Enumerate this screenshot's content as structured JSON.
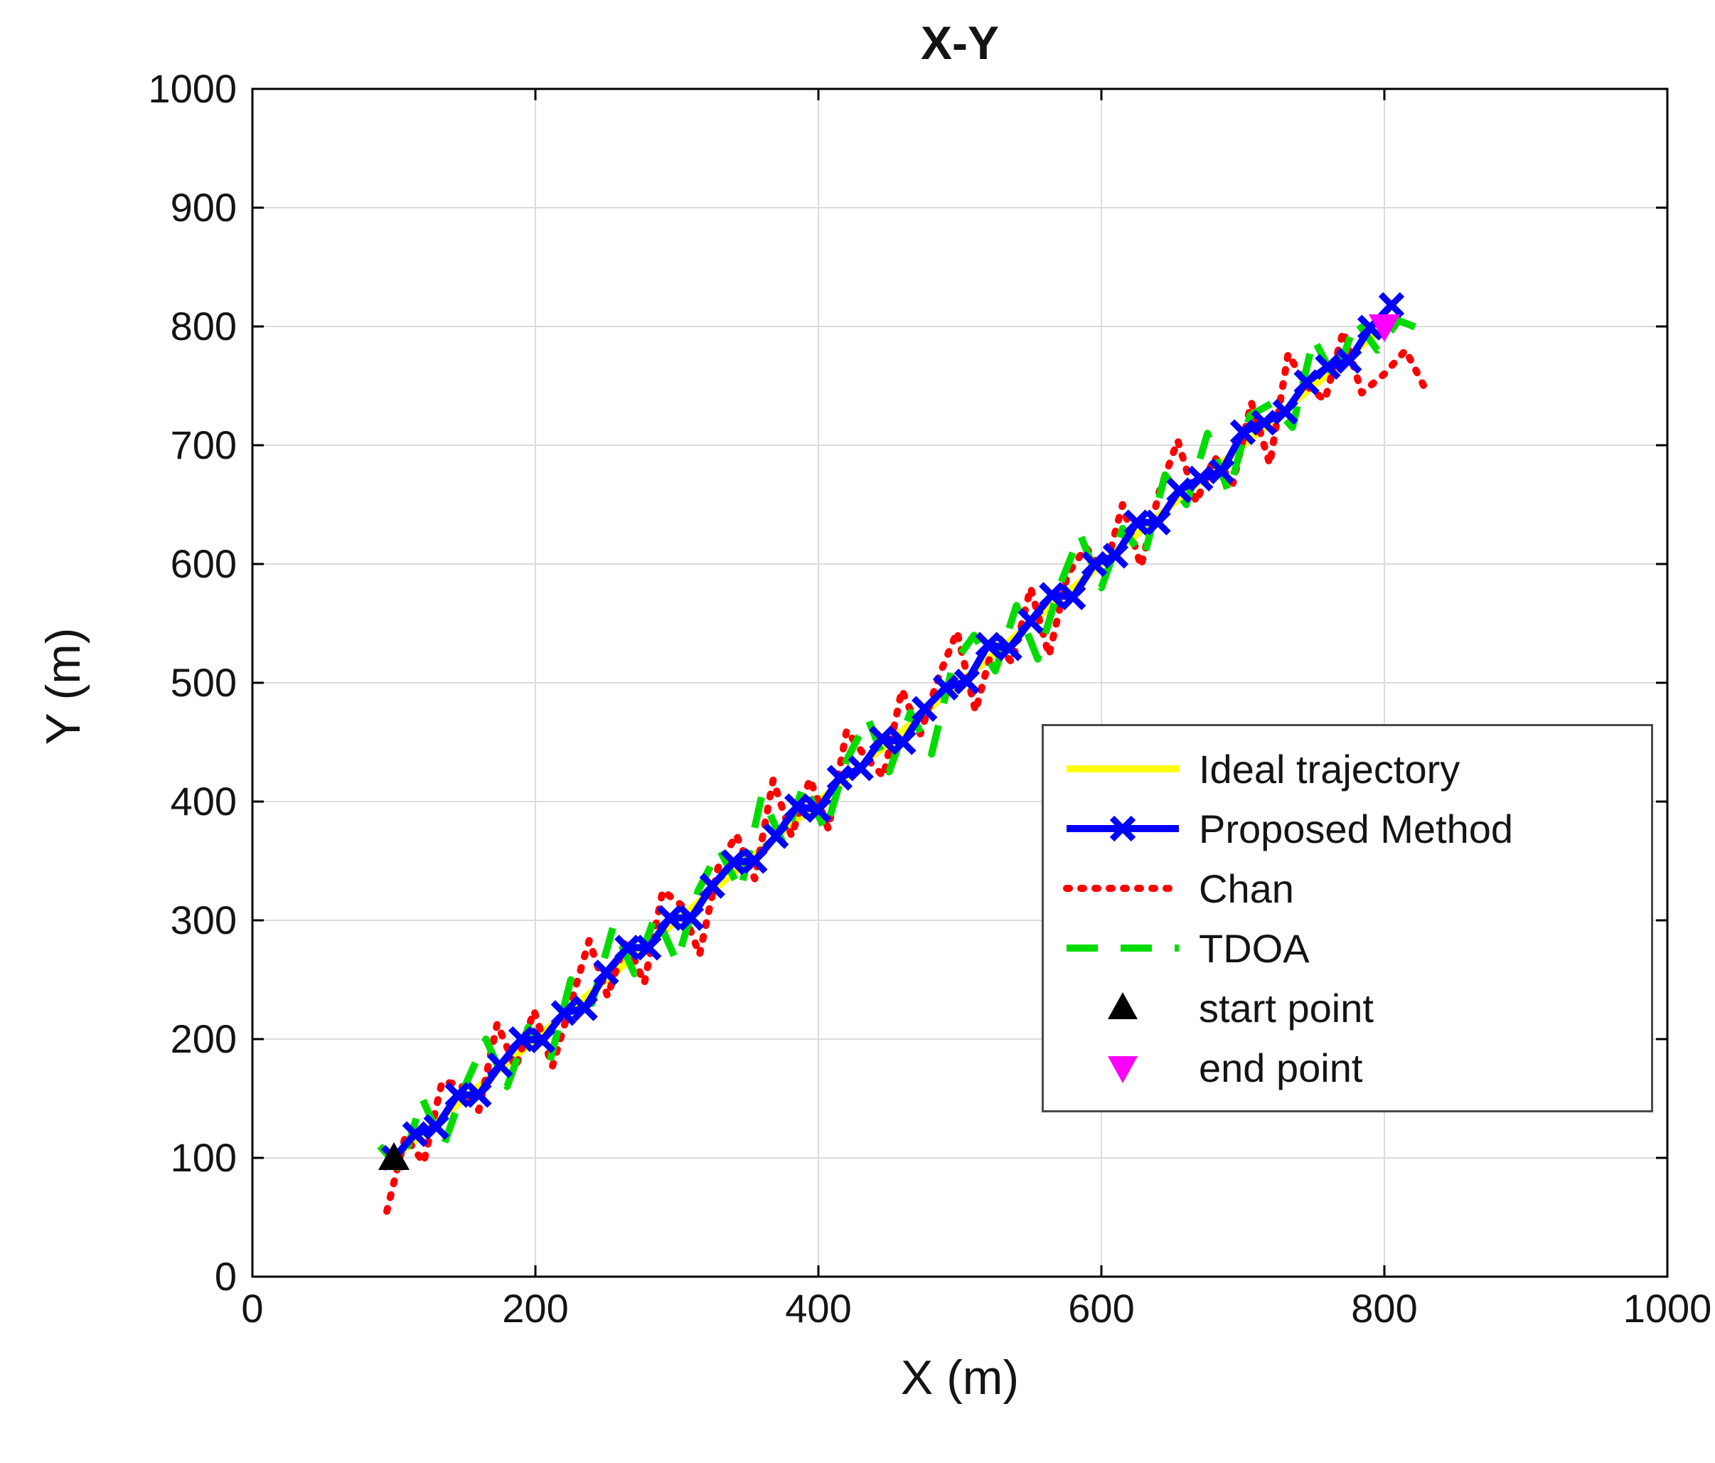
{
  "chart_data": {
    "type": "line",
    "title": "X-Y",
    "xlabel": "X (m)",
    "ylabel": "Y (m)",
    "xlim": [
      0,
      1000
    ],
    "ylim": [
      0,
      1000
    ],
    "xticks": [
      0,
      200,
      400,
      600,
      800,
      1000
    ],
    "yticks": [
      0,
      100,
      200,
      300,
      400,
      500,
      600,
      700,
      800,
      900,
      1000
    ],
    "grid": true,
    "grid_color": "#dcdcdc",
    "axes_color": "#000000",
    "legend": {
      "position": "inside-right",
      "items": [
        {
          "label": "Ideal trajectory",
          "color": "#FFFF00",
          "style": "solid",
          "marker": "none"
        },
        {
          "label": "Proposed Method",
          "color": "#0000FF",
          "style": "solid",
          "marker": "x"
        },
        {
          "label": "Chan",
          "color": "#FF0000",
          "style": "dotted",
          "marker": "none"
        },
        {
          "label": "TDOA",
          "color": "#00DC00",
          "style": "dashed",
          "marker": "none"
        },
        {
          "label": "start point",
          "color": "#000000",
          "style": "none",
          "marker": "triangle-up"
        },
        {
          "label": "end point",
          "color": "#FF00FF",
          "style": "none",
          "marker": "triangle-down"
        }
      ]
    },
    "series": [
      {
        "name": "Ideal trajectory",
        "color": "#FFFF00",
        "style": "solid",
        "width": 10,
        "marker": "none",
        "points": [
          [
            100,
            100
          ],
          [
            800,
            800
          ]
        ]
      },
      {
        "name": "Proposed Method",
        "color": "#0000FF",
        "style": "solid",
        "width": 10,
        "marker": "x",
        "points": [
          [
            100,
            100
          ],
          [
            115,
            120
          ],
          [
            130,
            126
          ],
          [
            145,
            153
          ],
          [
            160,
            153
          ],
          [
            175,
            178
          ],
          [
            190,
            200
          ],
          [
            205,
            199
          ],
          [
            220,
            222
          ],
          [
            235,
            226
          ],
          [
            250,
            256
          ],
          [
            265,
            277
          ],
          [
            280,
            277
          ],
          [
            295,
            302
          ],
          [
            310,
            302
          ],
          [
            325,
            329
          ],
          [
            340,
            349
          ],
          [
            355,
            350
          ],
          [
            370,
            371
          ],
          [
            385,
            396
          ],
          [
            400,
            393
          ],
          [
            415,
            420
          ],
          [
            430,
            428
          ],
          [
            445,
            453
          ],
          [
            460,
            450
          ],
          [
            475,
            478
          ],
          [
            490,
            496
          ],
          [
            505,
            501
          ],
          [
            520,
            532
          ],
          [
            535,
            529
          ],
          [
            550,
            552
          ],
          [
            565,
            574
          ],
          [
            580,
            572
          ],
          [
            595,
            600
          ],
          [
            610,
            607
          ],
          [
            625,
            635
          ],
          [
            640,
            635
          ],
          [
            655,
            662
          ],
          [
            670,
            672
          ],
          [
            685,
            678
          ],
          [
            700,
            711
          ],
          [
            715,
            719
          ],
          [
            730,
            728
          ],
          [
            745,
            753
          ],
          [
            760,
            766
          ],
          [
            775,
            771
          ],
          [
            790,
            799
          ],
          [
            805,
            818
          ]
        ]
      },
      {
        "name": "Chan",
        "color": "#FF0000",
        "style": "dotted",
        "width": 10,
        "marker": "none",
        "points": [
          [
            95,
            55
          ],
          [
            108,
            118
          ],
          [
            121,
            96
          ],
          [
            134,
            164
          ],
          [
            147,
            162
          ],
          [
            160,
            140
          ],
          [
            173,
            213
          ],
          [
            186,
            176
          ],
          [
            199,
            224
          ],
          [
            212,
            177
          ],
          [
            225,
            230
          ],
          [
            238,
            283
          ],
          [
            251,
            236
          ],
          [
            264,
            284
          ],
          [
            277,
            247
          ],
          [
            290,
            325
          ],
          [
            303,
            313
          ],
          [
            316,
            271
          ],
          [
            329,
            344
          ],
          [
            342,
            372
          ],
          [
            355,
            335
          ],
          [
            368,
            418
          ],
          [
            381,
            371
          ],
          [
            394,
            419
          ],
          [
            407,
            377
          ],
          [
            420,
            460
          ],
          [
            433,
            438
          ],
          [
            446,
            421
          ],
          [
            459,
            494
          ],
          [
            472,
            457
          ],
          [
            485,
            505
          ],
          [
            498,
            543
          ],
          [
            511,
            476
          ],
          [
            524,
            534
          ],
          [
            537,
            517
          ],
          [
            550,
            580
          ],
          [
            563,
            523
          ],
          [
            576,
            591
          ],
          [
            589,
            614
          ],
          [
            602,
            592
          ],
          [
            615,
            650
          ],
          [
            628,
            598
          ],
          [
            641,
            661
          ],
          [
            654,
            704
          ],
          [
            667,
            652
          ],
          [
            680,
            690
          ],
          [
            693,
            668
          ],
          [
            706,
            736
          ],
          [
            719,
            684
          ],
          [
            732,
            777
          ],
          [
            745,
            750
          ],
          [
            758,
            738
          ],
          [
            771,
            796
          ],
          [
            784,
            744
          ],
          [
            800,
            760
          ],
          [
            815,
            780
          ],
          [
            830,
            745
          ]
        ]
      },
      {
        "name": "TDOA",
        "color": "#00DC00",
        "style": "dashed",
        "width": 10,
        "marker": "none",
        "points": [
          [
            90,
            110
          ],
          [
            105,
            90
          ],
          [
            120,
            150
          ],
          [
            135,
            110
          ],
          [
            150,
            160
          ],
          [
            165,
            200
          ],
          [
            180,
            160
          ],
          [
            195,
            210
          ],
          [
            210,
            180
          ],
          [
            225,
            250
          ],
          [
            240,
            230
          ],
          [
            255,
            295
          ],
          [
            270,
            255
          ],
          [
            285,
            305
          ],
          [
            300,
            265
          ],
          [
            315,
            325
          ],
          [
            330,
            360
          ],
          [
            345,
            325
          ],
          [
            360,
            405
          ],
          [
            375,
            365
          ],
          [
            390,
            415
          ],
          [
            405,
            375
          ],
          [
            420,
            435
          ],
          [
            435,
            470
          ],
          [
            450,
            425
          ],
          [
            465,
            475
          ],
          [
            480,
            440
          ],
          [
            495,
            515
          ],
          [
            510,
            540
          ],
          [
            525,
            510
          ],
          [
            540,
            565
          ],
          [
            555,
            520
          ],
          [
            570,
            580
          ],
          [
            585,
            625
          ],
          [
            600,
            580
          ],
          [
            615,
            630
          ],
          [
            630,
            605
          ],
          [
            645,
            675
          ],
          [
            660,
            650
          ],
          [
            675,
            710
          ],
          [
            690,
            660
          ],
          [
            705,
            725
          ],
          [
            720,
            735
          ],
          [
            735,
            715
          ],
          [
            750,
            790
          ],
          [
            765,
            755
          ],
          [
            780,
            805
          ],
          [
            795,
            780
          ],
          [
            810,
            805
          ],
          [
            825,
            798
          ]
        ]
      }
    ],
    "markers": [
      {
        "name": "start point",
        "color": "#000000",
        "shape": "triangle-up",
        "point": [
          100,
          100
        ]
      },
      {
        "name": "end point",
        "color": "#FF00FF",
        "shape": "triangle-down",
        "point": [
          800,
          800
        ]
      }
    ]
  }
}
